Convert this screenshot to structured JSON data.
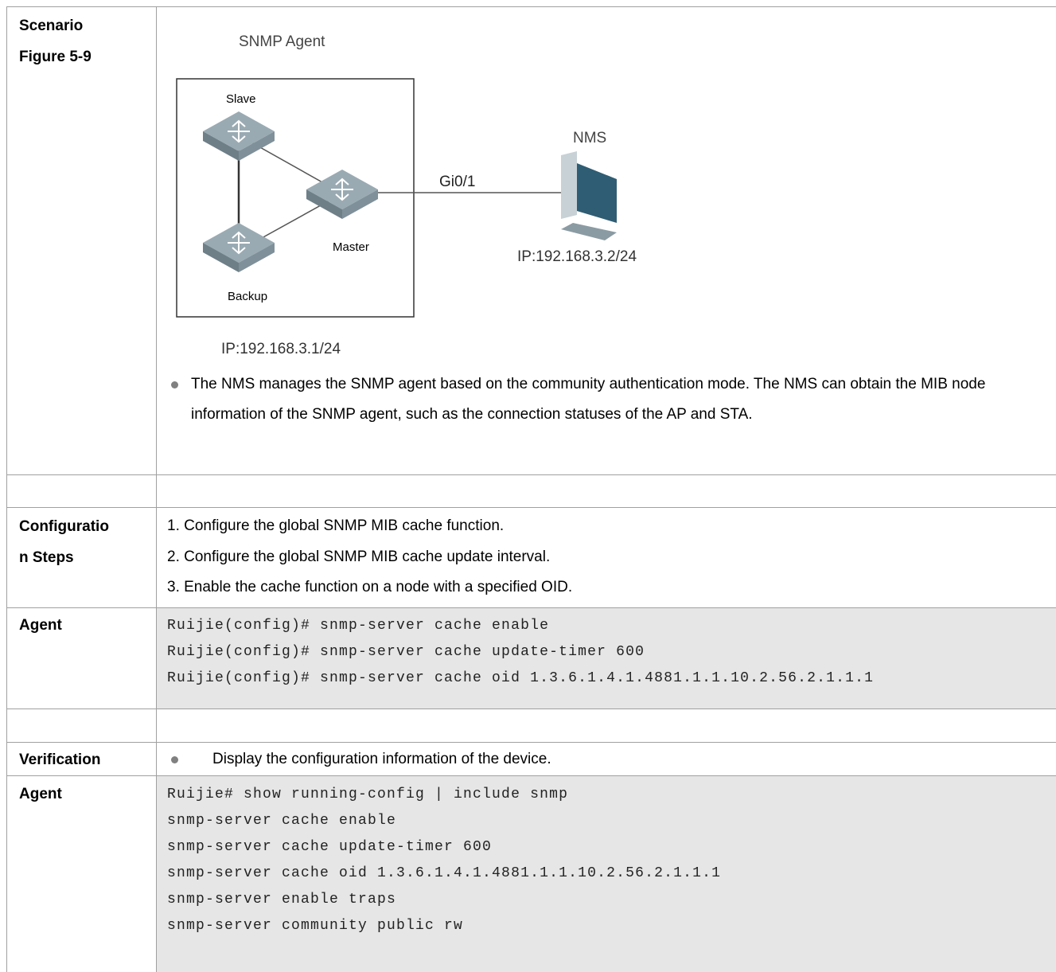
{
  "table": {
    "rows": [
      {
        "label": [
          "Scenario",
          "Figure 5-9"
        ],
        "figure": {
          "title": "SNMP Agent",
          "slave": "Slave",
          "master": "Master",
          "backup": "Backup",
          "nms": "NMS",
          "link": "Gi0/1",
          "nms_ip": "IP:192.168.3.2/24",
          "agent_ip": "IP:192.168.3.1/24"
        },
        "bullet": "The NMS manages the SNMP agent based on the community authentication mode. The NMS can obtain the MIB node information of the SNMP agent, such as the connection statuses of the AP and STA."
      },
      {
        "label": [
          "Configuratio",
          "n Steps"
        ],
        "steps": [
          "1. Configure the global SNMP MIB cache function.",
          "2. Configure the global SNMP MIB cache update interval.",
          "3. Enable the cache function on a node with a specified OID."
        ]
      },
      {
        "label": [
          "Agent"
        ],
        "code": [
          "Ruijie(config)# snmp-server cache enable",
          "Ruijie(config)# snmp-server cache update-timer 600",
          "Ruijie(config)# snmp-server cache oid 1.3.6.1.4.1.4881.1.1.10.2.56.2.1.1.1"
        ]
      },
      {
        "label": [
          "Verification"
        ],
        "bullet": "Display the configuration information of the device."
      },
      {
        "label": [
          "Agent"
        ],
        "code": [
          "Ruijie# show running-config | include snmp",
          "snmp-server cache enable",
          "snmp-server cache update-timer 600",
          "snmp-server cache oid 1.3.6.1.4.1.4881.1.1.10.2.56.2.1.1.1",
          "snmp-server enable traps",
          "snmp-server community public rw"
        ]
      }
    ]
  }
}
